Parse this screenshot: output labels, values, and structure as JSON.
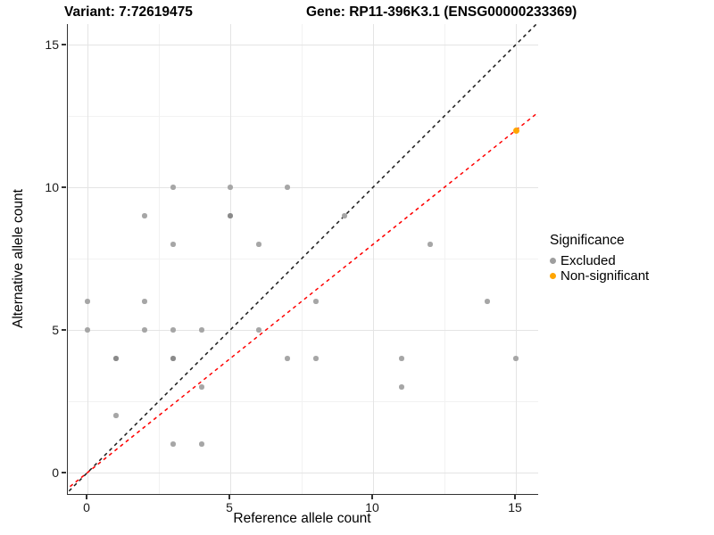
{
  "titles": {
    "variant": "Variant: 7:72619475",
    "gene": "Gene: RP11-396K3.1 (ENSG00000233369)"
  },
  "legend": {
    "title": "Significance",
    "items": [
      {
        "label": "Excluded",
        "color": "#9e9e9e"
      },
      {
        "label": "Non-significant",
        "color": "#ffa500"
      }
    ]
  },
  "colors": {
    "excluded_point": "#a6a6a6",
    "excluded_point_dark": "#8a8a8a",
    "nonsignificant_point": "#ffa500",
    "identity_line": "#1a1a1a",
    "fit_line": "#ff0000",
    "axis": "#333333",
    "grid_major": "#e4e4e4",
    "grid_minor": "#f2f2f2"
  },
  "chart_data": {
    "type": "scatter",
    "title": "Variant: 7:72619475 — Gene: RP11-396K3.1 (ENSG00000233369)",
    "xlabel": "Reference allele count",
    "ylabel": "Alternative allele count",
    "xlim": [
      -0.8,
      15.9
    ],
    "ylim": [
      -0.8,
      15.7
    ],
    "x_ticks": [
      0,
      5,
      10,
      15
    ],
    "y_ticks": [
      0,
      5,
      10,
      15
    ],
    "minor_ticks": [
      2.5,
      7.5,
      12.5
    ],
    "grid": "on",
    "legend_position": "right",
    "series": [
      {
        "name": "Excluded",
        "color": "#a6a6a6",
        "points": [
          [
            0,
            5
          ],
          [
            0,
            6
          ],
          [
            1,
            2
          ],
          [
            1,
            4
          ],
          [
            2,
            5
          ],
          [
            2,
            6
          ],
          [
            2,
            9
          ],
          [
            3,
            1
          ],
          [
            3,
            4
          ],
          [
            3,
            5
          ],
          [
            3,
            8
          ],
          [
            3,
            10
          ],
          [
            4,
            1
          ],
          [
            4,
            3
          ],
          [
            4,
            5
          ],
          [
            5,
            9
          ],
          [
            5,
            10
          ],
          [
            6,
            5
          ],
          [
            6,
            8
          ],
          [
            7,
            4
          ],
          [
            7,
            10
          ],
          [
            8,
            4
          ],
          [
            8,
            6
          ],
          [
            9,
            9
          ],
          [
            11,
            3
          ],
          [
            11,
            4
          ],
          [
            12,
            8
          ],
          [
            14,
            6
          ],
          [
            15,
            4
          ]
        ],
        "darker_points": [
          [
            1,
            4
          ],
          [
            3,
            4
          ],
          [
            5,
            9
          ]
        ]
      },
      {
        "name": "Non-significant",
        "color": "#ffa500",
        "points": [
          [
            15,
            12
          ]
        ]
      }
    ],
    "lines": [
      {
        "name": "identity",
        "slope": 1.0,
        "intercept": 0,
        "color": "#1a1a1a",
        "style": "dashed"
      },
      {
        "name": "fit",
        "slope": 0.8,
        "intercept": 0,
        "color": "#ff0000",
        "style": "dashed"
      }
    ]
  }
}
